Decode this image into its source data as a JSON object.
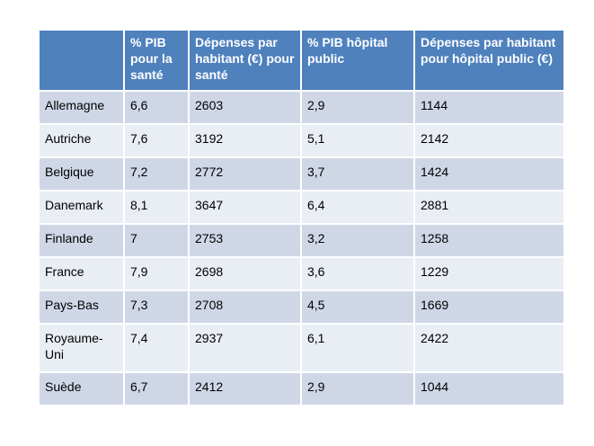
{
  "headers": [
    "",
    "% PIB pour la santé",
    "Dépenses par habitant (€) pour santé",
    "% PIB hôpital public",
    "Dépenses par habitant pour hôpital public (€)"
  ],
  "rows": [
    [
      "Allemagne",
      "6,6",
      "2603",
      "2,9",
      "1144"
    ],
    [
      "Autriche",
      "7,6",
      "3192",
      "5,1",
      "2142"
    ],
    [
      "Belgique",
      "7,2",
      "2772",
      "3,7",
      "1424"
    ],
    [
      "Danemark",
      "8,1",
      "3647",
      "6,4",
      "2881"
    ],
    [
      "Finlande",
      "7",
      "2753",
      "3,2",
      "1258"
    ],
    [
      "France",
      "7,9",
      "2698",
      "3,6",
      "1229"
    ],
    [
      "Pays-Bas",
      "7,3",
      "2708",
      "4,5",
      "1669"
    ],
    [
      "Royaume-Uni",
      "7,4",
      "2937",
      "6,1",
      "2422"
    ],
    [
      "Suède",
      "6,7",
      "2412",
      "2,9",
      "1044"
    ]
  ],
  "colors": {
    "header": "#4f81bd",
    "row_odd": "#cfd7e7",
    "row_even": "#e9edf4"
  }
}
